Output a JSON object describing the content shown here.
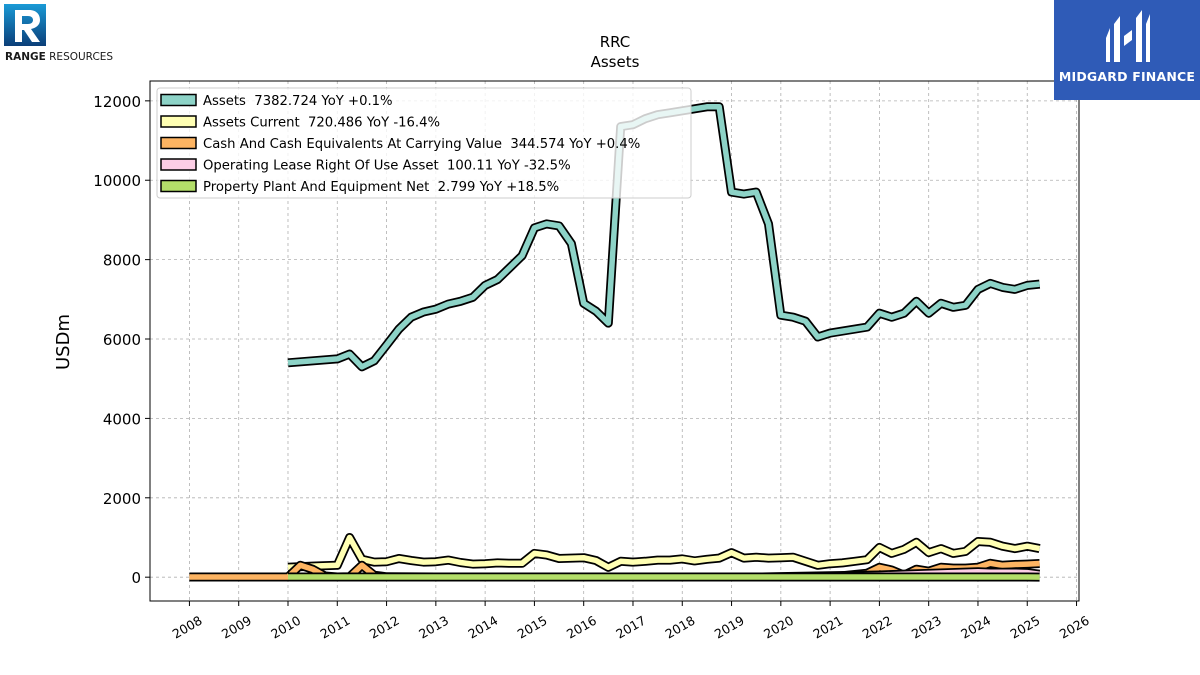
{
  "brand": {
    "left_logo_bold": "RANGE",
    "left_logo_rest": " RESOURCES",
    "right_logo_text": "MIDGARD FINANCE"
  },
  "chart_data": {
    "type": "line",
    "title": "RRC",
    "subtitle": "Assets",
    "xlabel": "",
    "ylabel": "USDm",
    "xlim": [
      2007.2,
      2026.05
    ],
    "ylim": [
      -600,
      12500
    ],
    "yticks": [
      0,
      2000,
      4000,
      6000,
      8000,
      10000,
      12000
    ],
    "xticks": [
      "2008",
      "2009",
      "2010",
      "2011",
      "2012",
      "2013",
      "2014",
      "2015",
      "2016",
      "2017",
      "2018",
      "2019",
      "2020",
      "2021",
      "2022",
      "2023",
      "2024",
      "2025",
      "2026"
    ],
    "grid": true,
    "legend_position": "top-left",
    "series": [
      {
        "name": "Assets",
        "legend": "Assets  7382.724 YoY +0.1%",
        "color": "#8dd3c7",
        "x": [
          2010.0,
          2011.0,
          2011.25,
          2011.5,
          2011.75,
          2012.0,
          2012.25,
          2012.5,
          2012.75,
          2013.0,
          2013.25,
          2013.5,
          2013.75,
          2014.0,
          2014.25,
          2014.5,
          2014.75,
          2015.0,
          2015.25,
          2015.5,
          2015.75,
          2016.0,
          2016.25,
          2016.5,
          2016.75,
          2017.0,
          2017.25,
          2017.5,
          2017.75,
          2018.0,
          2018.25,
          2018.5,
          2018.75,
          2019.0,
          2019.25,
          2019.5,
          2019.75,
          2020.0,
          2020.25,
          2020.5,
          2020.75,
          2021.0,
          2021.25,
          2021.5,
          2021.75,
          2022.0,
          2022.25,
          2022.5,
          2022.75,
          2023.0,
          2023.25,
          2023.5,
          2023.75,
          2024.0,
          2024.25,
          2024.5,
          2024.75,
          2025.0,
          2025.25
        ],
        "values": [
          5400,
          5500,
          5620,
          5300,
          5450,
          5850,
          6250,
          6550,
          6680,
          6750,
          6880,
          6950,
          7050,
          7350,
          7500,
          7800,
          8100,
          8800,
          8900,
          8850,
          8400,
          6900,
          6700,
          6400,
          11350,
          11400,
          11550,
          11650,
          11700,
          11750,
          11800,
          11850,
          11850,
          9700,
          9650,
          9700,
          8900,
          6600,
          6550,
          6450,
          6050,
          6150,
          6200,
          6250,
          6300,
          6650,
          6550,
          6650,
          6950,
          6650,
          6900,
          6800,
          6850,
          7250,
          7400,
          7300,
          7250,
          7350,
          7383
        ]
      },
      {
        "name": "Assets Current",
        "legend": "Assets Current  720.486 YoY -16.4%",
        "color": "#ffffb3",
        "x": [
          2010.0,
          2010.5,
          2011.0,
          2011.25,
          2011.5,
          2011.75,
          2012.0,
          2012.25,
          2012.5,
          2012.75,
          2013.0,
          2013.25,
          2013.5,
          2013.75,
          2014.0,
          2014.25,
          2014.5,
          2014.75,
          2015.0,
          2015.25,
          2015.5,
          2015.75,
          2016.0,
          2016.25,
          2016.5,
          2016.75,
          2017.0,
          2017.25,
          2017.5,
          2017.75,
          2018.0,
          2018.25,
          2018.5,
          2018.75,
          2019.0,
          2019.25,
          2019.5,
          2019.75,
          2020.0,
          2020.25,
          2020.5,
          2020.75,
          2021.0,
          2021.25,
          2021.5,
          2021.75,
          2022.0,
          2022.25,
          2022.5,
          2022.75,
          2023.0,
          2023.25,
          2023.5,
          2023.75,
          2024.0,
          2024.25,
          2024.5,
          2024.75,
          2025.0,
          2025.25
        ],
        "values": [
          250,
          280,
          300,
          1000,
          450,
          380,
          390,
          470,
          420,
          380,
          390,
          430,
          370,
          330,
          340,
          360,
          350,
          350,
          600,
          560,
          470,
          480,
          490,
          420,
          250,
          400,
          380,
          400,
          430,
          430,
          460,
          410,
          450,
          480,
          620,
          480,
          500,
          480,
          490,
          500,
          400,
          300,
          340,
          360,
          400,
          440,
          750,
          600,
          700,
          880,
          620,
          720,
          600,
          650,
          900,
          880,
          780,
          720,
          780,
          720
        ]
      },
      {
        "name": "Cash And Cash Equivalents At Carrying Value",
        "legend": "Cash And Cash Equivalents At Carrying Value  344.574 YoY +0.4%",
        "color": "#fdb462",
        "x": [
          2008.0,
          2009.0,
          2010.0,
          2010.25,
          2010.5,
          2010.75,
          2011.0,
          2011.25,
          2011.5,
          2011.75,
          2012.0,
          2013.0,
          2014.0,
          2015.0,
          2016.0,
          2017.0,
          2018.0,
          2019.0,
          2020.0,
          2021.0,
          2021.75,
          2022.0,
          2022.25,
          2022.5,
          2022.75,
          2023.0,
          2023.25,
          2023.5,
          2023.75,
          2024.0,
          2024.25,
          2024.5,
          2024.75,
          2025.0,
          2025.25
        ],
        "values": [
          5,
          5,
          5,
          300,
          200,
          30,
          5,
          10,
          300,
          50,
          10,
          5,
          5,
          5,
          5,
          5,
          5,
          5,
          5,
          5,
          100,
          250,
          180,
          50,
          200,
          150,
          250,
          230,
          230,
          250,
          350,
          300,
          320,
          330,
          345
        ]
      },
      {
        "name": "Operating Lease Right Of Use Asset",
        "legend": "Operating Lease Right Of Use Asset  100.11 YoY -32.5%",
        "color": "#fccde5",
        "x": [
          2019.0,
          2020.0,
          2021.0,
          2022.0,
          2023.0,
          2024.0,
          2024.25,
          2024.5,
          2024.75,
          2025.0,
          2025.25
        ],
        "values": [
          10,
          40,
          60,
          80,
          120,
          160,
          150,
          150,
          150,
          140,
          100
        ]
      },
      {
        "name": "Property Plant And Equipment Net",
        "legend": "Property Plant And Equipment Net  2.799 YoY +18.5%",
        "color": "#b3de69",
        "x": [
          2010.0,
          2011.0,
          2012.0,
          2013.0,
          2014.0,
          2015.0,
          2016.0,
          2017.0,
          2018.0,
          2019.0,
          2020.0,
          2021.0,
          2022.0,
          2023.0,
          2024.0,
          2025.0,
          2025.25
        ],
        "values": [
          5,
          5,
          5,
          5,
          5,
          5,
          5,
          5,
          5,
          5,
          5,
          5,
          5,
          5,
          5,
          5,
          3
        ]
      }
    ]
  }
}
